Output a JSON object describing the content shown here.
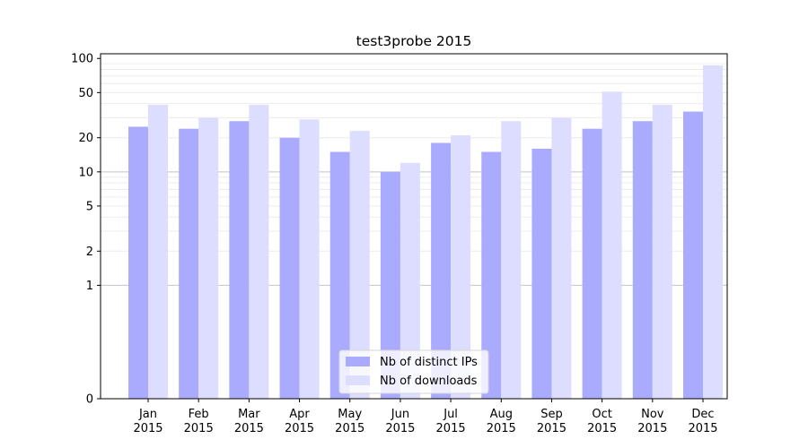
{
  "chart_data": {
    "type": "bar",
    "title": "test3probe 2015",
    "xlabel": "",
    "ylabel": "",
    "y_scale": "symlog",
    "ylim": [
      0,
      110
    ],
    "yticks": [
      0,
      1,
      2,
      5,
      10,
      20,
      50,
      100
    ],
    "major_gridlines": [
      1,
      10
    ],
    "grid": "horizontal",
    "legend_position": "bottom-center",
    "categories": [
      [
        "Jan",
        "2015"
      ],
      [
        "Feb",
        "2015"
      ],
      [
        "Mar",
        "2015"
      ],
      [
        "Apr",
        "2015"
      ],
      [
        "May",
        "2015"
      ],
      [
        "Jun",
        "2015"
      ],
      [
        "Jul",
        "2015"
      ],
      [
        "Aug",
        "2015"
      ],
      [
        "Sep",
        "2015"
      ],
      [
        "Oct",
        "2015"
      ],
      [
        "Nov",
        "2015"
      ],
      [
        "Dec",
        "2015"
      ]
    ],
    "series": [
      {
        "name": "Nb of distinct IPs",
        "color": "#aaaaff",
        "values": [
          25,
          24,
          28,
          20,
          15,
          10,
          18,
          15,
          16,
          24,
          28,
          34
        ]
      },
      {
        "name": "Nb of downloads",
        "color": "#ddddff",
        "values": [
          39,
          30,
          39,
          29,
          23,
          12,
          21,
          28,
          30,
          51,
          39,
          87
        ]
      }
    ]
  }
}
